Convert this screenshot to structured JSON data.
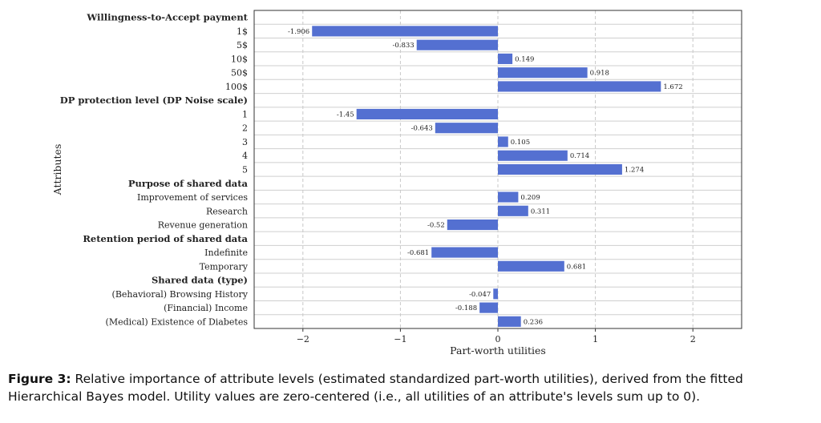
{
  "chart_data": {
    "type": "bar",
    "orientation": "horizontal",
    "xlabel": "Part-worth utilities",
    "ylabel": "Attributes",
    "xlim": [
      -2.5,
      2.5
    ],
    "xticks": [
      -2,
      -1,
      0,
      1,
      2
    ],
    "xtick_labels": [
      "−2",
      "−1",
      "0",
      "1",
      "2"
    ],
    "grid": "vertical and horizontal dashed",
    "bar_color": "#5470d1",
    "rows": [
      {
        "label": "Willingness-to-Accept payment",
        "header": true
      },
      {
        "label": "1$",
        "value": -1.906,
        "value_label": "-1.906"
      },
      {
        "label": "5$",
        "value": -0.833,
        "value_label": "-0.833"
      },
      {
        "label": "10$",
        "value": 0.149,
        "value_label": "0.149"
      },
      {
        "label": "50$",
        "value": 0.918,
        "value_label": "0.918"
      },
      {
        "label": "100$",
        "value": 1.672,
        "value_label": "1.672"
      },
      {
        "label": "DP protection level (DP Noise scale)",
        "header": true
      },
      {
        "label": "1",
        "value": -1.45,
        "value_label": "-1.45"
      },
      {
        "label": "2",
        "value": -0.643,
        "value_label": "-0.643"
      },
      {
        "label": "3",
        "value": 0.105,
        "value_label": "0.105"
      },
      {
        "label": "4",
        "value": 0.714,
        "value_label": "0.714"
      },
      {
        "label": "5",
        "value": 1.274,
        "value_label": "1.274"
      },
      {
        "label": "Purpose of shared data",
        "header": true
      },
      {
        "label": "Improvement of services",
        "value": 0.209,
        "value_label": "0.209"
      },
      {
        "label": "Research",
        "value": 0.311,
        "value_label": "0.311"
      },
      {
        "label": "Revenue generation",
        "value": -0.52,
        "value_label": "-0.52"
      },
      {
        "label": "Retention period of shared data",
        "header": true
      },
      {
        "label": "Indefinite",
        "value": -0.681,
        "value_label": "-0.681"
      },
      {
        "label": "Temporary",
        "value": 0.681,
        "value_label": "0.681"
      },
      {
        "label": "Shared data (type)",
        "header": true
      },
      {
        "label": "(Behavioral) Browsing History",
        "value": -0.047,
        "value_label": "-0.047"
      },
      {
        "label": "(Financial) Income",
        "value": -0.188,
        "value_label": "-0.188"
      },
      {
        "label": "(Medical) Existence of Diabetes",
        "value": 0.236,
        "value_label": "0.236"
      }
    ]
  },
  "caption": {
    "label": "Figure 3:",
    "text": "Relative importance of attribute levels (estimated standardized part-worth utilities), derived from the fitted Hierarchical Bayes model. Utility values are zero-centered (i.e., all utilities of an attribute's levels sum up to 0)."
  }
}
